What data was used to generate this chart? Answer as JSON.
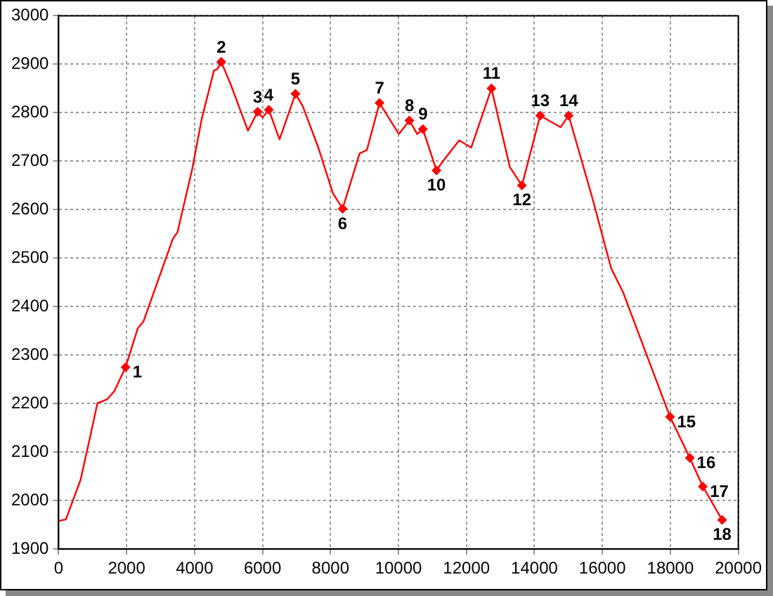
{
  "chart_data": {
    "type": "line",
    "xlim": [
      0,
      20000
    ],
    "xticks": [
      0,
      2000,
      4000,
      6000,
      8000,
      10000,
      12000,
      14000,
      16000,
      18000,
      20000
    ],
    "ylim": [
      1900,
      3000
    ],
    "yticks": [
      1900,
      2000,
      2100,
      2200,
      2300,
      2400,
      2500,
      2600,
      2700,
      2800,
      2900,
      3000
    ],
    "grid": true,
    "legend": false,
    "series": [
      {
        "type": "line",
        "marker": "none",
        "color": "#ff0000",
        "x": [
          0,
          214,
          643,
          929,
          1143,
          1429,
          1643,
          1970,
          2329,
          2500,
          3357,
          3500,
          3929,
          4214,
          4571,
          4671,
          4786,
          5071,
          5571,
          5857,
          6000,
          6186,
          6500,
          6971,
          7186,
          7643,
          8071,
          8357,
          8857,
          9071,
          9443,
          10011,
          10322,
          10550,
          10720,
          11118,
          11288,
          11786,
          12140,
          12737,
          13277,
          13632,
          14171,
          14768,
          15009,
          15690,
          16259,
          16613,
          17252,
          17990,
          18573,
          18956,
          19524
        ],
        "values": [
          1958,
          1961,
          2042,
          2132,
          2201,
          2209,
          2226,
          2275,
          2355,
          2370,
          2539,
          2554,
          2683,
          2788,
          2887,
          2890,
          2905,
          2857,
          2763,
          2802,
          2790,
          2806,
          2745,
          2839,
          2813,
          2728,
          2634,
          2602,
          2716,
          2723,
          2820,
          2756,
          2784,
          2756,
          2766,
          2681,
          2698,
          2743,
          2728,
          2850,
          2688,
          2650,
          2794,
          2770,
          2794,
          2628,
          2479,
          2429,
          2310,
          2173,
          2088,
          2029,
          1960
        ]
      },
      {
        "type": "scatter",
        "marker": "diamond",
        "color": "#ff0000",
        "x": [
          1970,
          4786,
          5857,
          6186,
          6971,
          8357,
          9443,
          10322,
          10720,
          11118,
          12737,
          13632,
          14171,
          15009,
          17990,
          18573,
          18956,
          19524
        ],
        "values": [
          2275,
          2905,
          2802,
          2806,
          2839,
          2602,
          2820,
          2784,
          2766,
          2681,
          2850,
          2650,
          2794,
          2794,
          2173,
          2088,
          2029,
          1960
        ]
      }
    ],
    "annotations": [
      {
        "text": "1",
        "x": 1970,
        "y": 2275
      },
      {
        "text": "2",
        "x": 4786,
        "y": 2905
      },
      {
        "text": "3",
        "x": 5857,
        "y": 2802
      },
      {
        "text": "4",
        "x": 6186,
        "y": 2806
      },
      {
        "text": "5",
        "x": 6971,
        "y": 2839
      },
      {
        "text": "6",
        "x": 8357,
        "y": 2602
      },
      {
        "text": "7",
        "x": 9443,
        "y": 2820
      },
      {
        "text": "8",
        "x": 10322,
        "y": 2784
      },
      {
        "text": "9",
        "x": 10720,
        "y": 2766
      },
      {
        "text": "10",
        "x": 11118,
        "y": 2681
      },
      {
        "text": "11",
        "x": 12737,
        "y": 2850
      },
      {
        "text": "12",
        "x": 13632,
        "y": 2650
      },
      {
        "text": "13",
        "x": 14171,
        "y": 2794
      },
      {
        "text": "14",
        "x": 15009,
        "y": 2794
      },
      {
        "text": "15",
        "x": 17990,
        "y": 2173
      },
      {
        "text": "16",
        "x": 18573,
        "y": 2088
      },
      {
        "text": "17",
        "x": 18956,
        "y": 2029
      },
      {
        "text": "18",
        "x": 19524,
        "y": 1960
      }
    ]
  }
}
